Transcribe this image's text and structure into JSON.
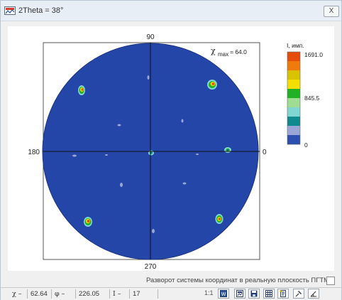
{
  "window": {
    "title": "2Theta =  38°",
    "close_label": "X"
  },
  "pole_figure": {
    "labels": {
      "top": "90",
      "bottom": "270",
      "left": "180",
      "right": "0"
    },
    "chi_label": "χ",
    "chi_sub": "max",
    "chi_value": "= 64.0",
    "background_color": "#2446a8"
  },
  "legend": {
    "title": "I, имп.",
    "max_label": "1691.0",
    "mid_label": "845.5",
    "min_label": "0",
    "colors": [
      "#e64d0a",
      "#f07a0a",
      "#d9c300",
      "#f5df00",
      "#22b024",
      "#9fde92",
      "#7fd6d3",
      "#10898f",
      "#9aa6d8",
      "#2c4fb0"
    ]
  },
  "options": {
    "rotate_label": "Разворот системы координат в реальную плоскость ПГТМ",
    "rotate_checked": false
  },
  "status": {
    "chi_label": "χ –",
    "chi_value": "62.64",
    "phi_label": "φ –",
    "phi_value": "226.05",
    "i_label": "I –",
    "i_value": "17",
    "page_indicator": "1:1"
  },
  "toolbar": {
    "buttons": [
      "word-icon",
      "image-icon",
      "save-icon",
      "table-icon",
      "report-icon",
      "pin-icon",
      "measure-icon"
    ]
  }
}
